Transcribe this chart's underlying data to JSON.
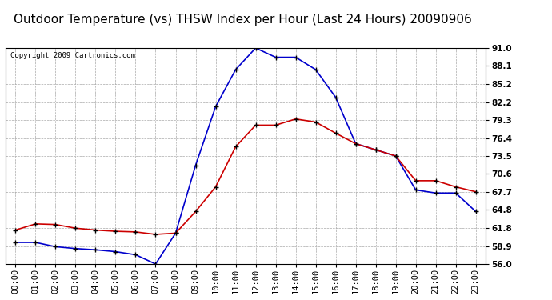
{
  "title": "Outdoor Temperature (vs) THSW Index per Hour (Last 24 Hours) 20090906",
  "copyright": "Copyright 2009 Cartronics.com",
  "hours": [
    0,
    1,
    2,
    3,
    4,
    5,
    6,
    7,
    8,
    9,
    10,
    11,
    12,
    13,
    14,
    15,
    16,
    17,
    18,
    19,
    20,
    21,
    22,
    23
  ],
  "x_labels": [
    "00:00",
    "01:00",
    "02:00",
    "03:00",
    "04:00",
    "05:00",
    "06:00",
    "07:00",
    "08:00",
    "09:00",
    "10:00",
    "11:00",
    "12:00",
    "13:00",
    "14:00",
    "15:00",
    "16:00",
    "17:00",
    "18:00",
    "19:00",
    "20:00",
    "21:00",
    "22:00",
    "23:00"
  ],
  "temp_red": [
    61.5,
    62.5,
    62.4,
    61.8,
    61.5,
    61.3,
    61.2,
    60.8,
    61.0,
    64.5,
    68.5,
    75.0,
    78.5,
    78.5,
    79.5,
    79.0,
    77.2,
    75.5,
    74.5,
    73.5,
    69.5,
    69.5,
    68.5,
    67.7
  ],
  "thsw_blue": [
    59.5,
    59.5,
    58.8,
    58.5,
    58.3,
    58.0,
    57.5,
    56.0,
    61.0,
    72.0,
    81.5,
    87.5,
    91.0,
    89.5,
    89.5,
    87.5,
    83.0,
    75.5,
    74.5,
    73.5,
    68.0,
    67.5,
    67.5,
    64.5
  ],
  "ylim_min": 56.0,
  "ylim_max": 91.0,
  "yticks": [
    56.0,
    58.9,
    61.8,
    64.8,
    67.7,
    70.6,
    73.5,
    76.4,
    79.3,
    82.2,
    85.2,
    88.1,
    91.0
  ],
  "bg_color": "#ffffff",
  "plot_bg": "#ffffff",
  "grid_color": "#aaaaaa",
  "line_red_color": "#cc0000",
  "line_blue_color": "#0000cc",
  "marker": "+",
  "marker_color": "#000000",
  "marker_size": 5,
  "line_width": 1.2,
  "title_fontsize": 11,
  "tick_fontsize": 7.5,
  "copyright_fontsize": 6.5
}
